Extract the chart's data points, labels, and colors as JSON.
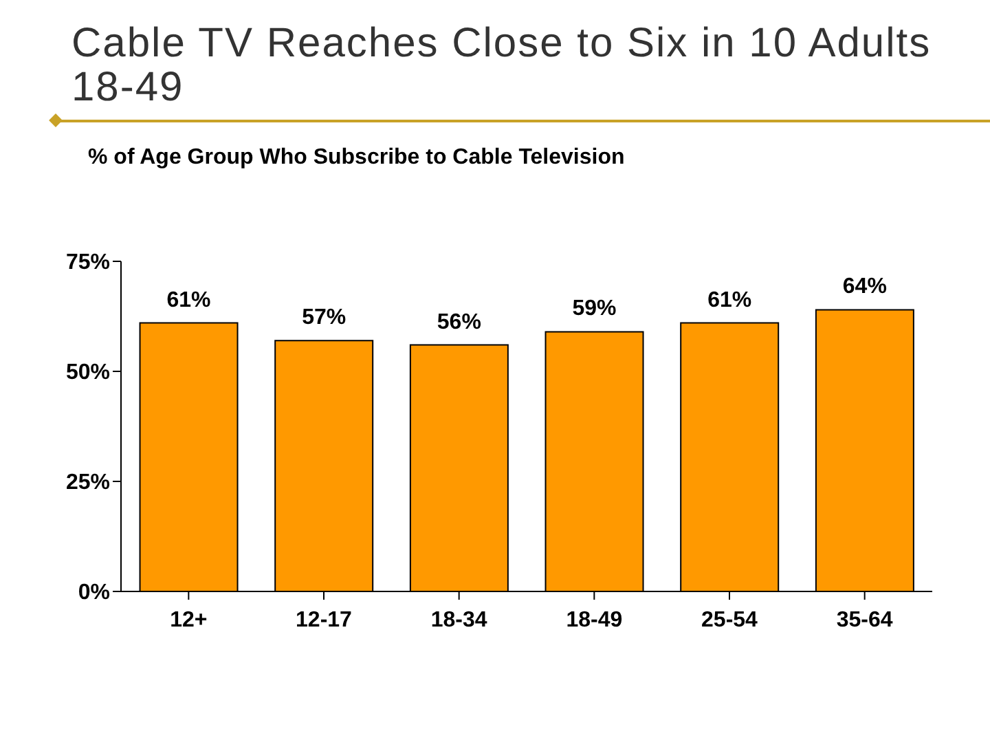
{
  "chart_data": {
    "type": "bar",
    "title": "Cable TV Reaches Close to Six in 10 Adults 18-49",
    "subtitle": "% of Age Group Who Subscribe to Cable Television",
    "categories": [
      "12+",
      "12-17",
      "18-34",
      "18-49",
      "25-54",
      "35-64"
    ],
    "values": [
      61,
      57,
      56,
      59,
      61,
      64
    ],
    "color": "#ff9900",
    "value_labels": [
      "61%",
      "57%",
      "56%",
      "59%",
      "61%",
      "64%"
    ],
    "ylim": [
      0,
      75
    ],
    "yticks": [
      {
        "value": 0,
        "label": "0%"
      },
      {
        "value": 25,
        "label": "25%"
      },
      {
        "value": 50,
        "label": "50%"
      },
      {
        "value": 75,
        "label": "75%"
      }
    ],
    "grid": false
  }
}
